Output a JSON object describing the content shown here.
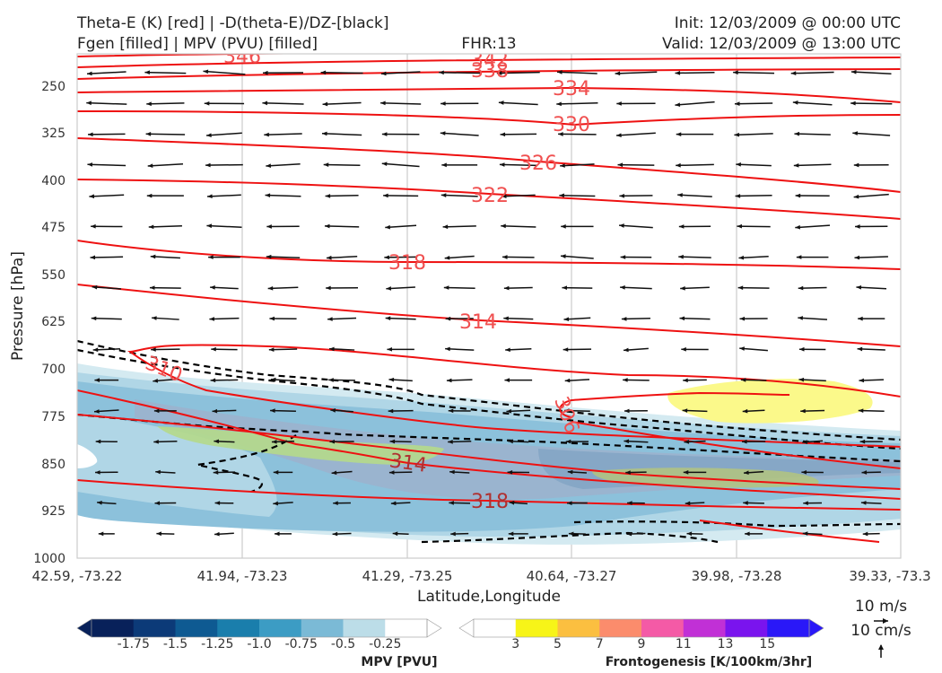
{
  "header": {
    "line1_left": "Theta-E (K) [red] | -D(theta-E)/DZ-[black]",
    "line2_left": "Fgen [filled] | MPV (PVU) [filled]",
    "fhr": "FHR:13",
    "init": "Init: 12/03/2009 @ 00:00 UTC",
    "valid": "Valid: 12/03/2009 @ 13:00 UTC"
  },
  "chart_data": {
    "type": "cross-section",
    "xlabel": "Latitude,Longitude",
    "ylabel": "Pressure [hPa]",
    "x_ticks": [
      "42.59, -73.22",
      "41.94, -73.23",
      "41.29, -73.25",
      "40.64, -73.27",
      "39.98, -73.28",
      "39.33, -73.3"
    ],
    "y_ticks": [
      "250",
      "325",
      "400",
      "475",
      "550",
      "625",
      "700",
      "775",
      "850",
      "925",
      "1000"
    ],
    "ylim": [
      1000,
      190
    ],
    "y_inverted": true,
    "grid": true,
    "theta_e_labels": [
      {
        "value": "346"
      },
      {
        "value": "342"
      },
      {
        "value": "338"
      },
      {
        "value": "334"
      },
      {
        "value": "330"
      },
      {
        "value": "326"
      },
      {
        "value": "322"
      },
      {
        "value": "318"
      },
      {
        "value": "314"
      },
      {
        "value": "310"
      },
      {
        "value": "306"
      },
      {
        "value": "314"
      },
      {
        "value": "318"
      }
    ],
    "mpv_colorbar": {
      "label": "MPV [PVU]",
      "ticks": [
        "-1.75",
        "-1.5",
        "-1.25",
        "-1.0",
        "-0.75",
        "-0.5",
        "-0.25"
      ],
      "colors": [
        "#08215a",
        "#0c3a78",
        "#0e5a92",
        "#1a7eac",
        "#3c9cc4",
        "#7bbad6",
        "#bcdde8",
        "#ffffff"
      ]
    },
    "fgen_colorbar": {
      "label": "Frontogenesis [K/100km/3hr]",
      "ticks": [
        "3",
        "5",
        "7",
        "9",
        "11",
        "13",
        "15"
      ],
      "colors": [
        "#ffffff",
        "#f7f418",
        "#fbbf40",
        "#fb8c6c",
        "#f45aa6",
        "#c130d6",
        "#7a14ee",
        "#2a18f8"
      ]
    },
    "wind_key": {
      "horizontal": "10 m/s",
      "vertical": "10 cm/s"
    }
  }
}
